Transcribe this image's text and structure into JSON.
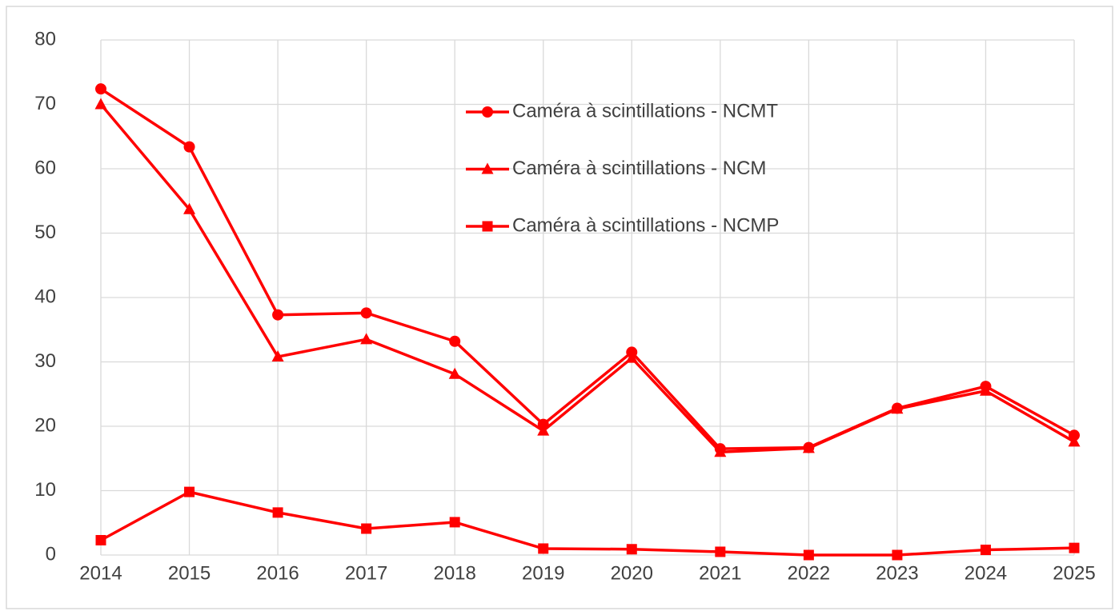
{
  "chart_data": {
    "type": "line",
    "x": [
      2014,
      2015,
      2016,
      2017,
      2018,
      2019,
      2020,
      2021,
      2022,
      2023,
      2024,
      2025
    ],
    "xlim": [
      2014,
      2025
    ],
    "xticks": [
      2014,
      2015,
      2016,
      2017,
      2018,
      2019,
      2020,
      2021,
      2022,
      2023,
      2024,
      2025
    ],
    "ylim": [
      0,
      80
    ],
    "yticks": [
      0,
      10,
      20,
      30,
      40,
      50,
      60,
      70,
      80
    ],
    "grid": true,
    "legend": "top-right",
    "series": [
      {
        "name": "Caméra à scintillations - NCMT",
        "color": "#ff0000",
        "marker": "circle",
        "values": [
          72.4,
          63.4,
          37.3,
          37.6,
          33.2,
          20.3,
          31.5,
          16.5,
          16.7,
          22.8,
          26.2,
          18.6
        ]
      },
      {
        "name": "Caméra à scintillations - NCM",
        "color": "#ff0000",
        "marker": "triangle",
        "values": [
          70,
          53.7,
          30.8,
          33.5,
          28.1,
          19.3,
          30.6,
          16,
          16.6,
          22.7,
          25.5,
          17.6
        ]
      },
      {
        "name": "Caméra à scintillations - NCMP",
        "color": "#ff0000",
        "marker": "square",
        "values": [
          2.3,
          9.8,
          6.6,
          4.1,
          5.1,
          1,
          0.9,
          0.5,
          0,
          0,
          0.8,
          1.1
        ]
      }
    ]
  }
}
